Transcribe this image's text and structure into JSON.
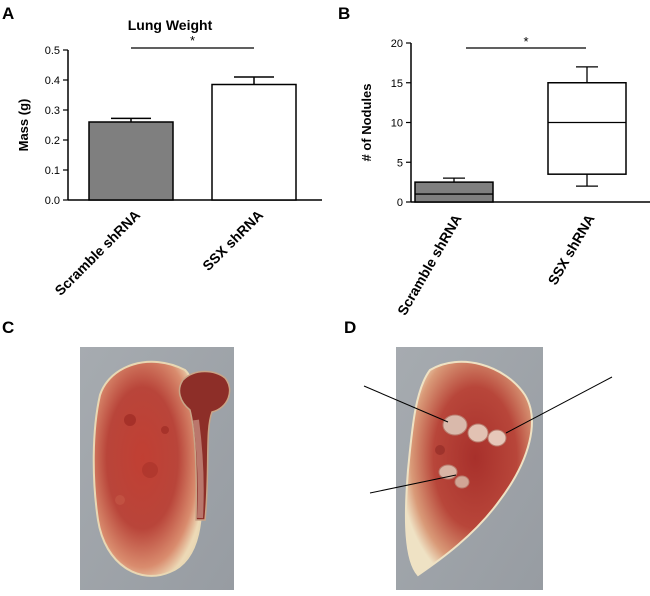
{
  "panels": {
    "a": "A",
    "b": "B",
    "c": "C",
    "d": "D"
  },
  "chart_data": [
    {
      "type": "bar",
      "panel": "A",
      "title": "Lung Weight",
      "xlabel": "",
      "ylabel": "Mass (g)",
      "ylim": [
        0,
        0.5
      ],
      "yticks": [
        "0.0",
        "0.1",
        "0.2",
        "0.3",
        "0.4",
        "0.5"
      ],
      "categories": [
        "Scramble shRNA",
        "SSX shRNA"
      ],
      "values": [
        0.26,
        0.385
      ],
      "errors": [
        0.012,
        0.025
      ],
      "fills": [
        "#7f7f7f",
        "#ffffff"
      ],
      "significance": "*"
    },
    {
      "type": "box",
      "panel": "B",
      "title": "",
      "xlabel": "",
      "ylabel": "# of Nodules",
      "ylim": [
        0,
        20
      ],
      "yticks": [
        "0",
        "5",
        "10",
        "15",
        "20"
      ],
      "categories": [
        "Scramble shRNA",
        "SSX shRNA"
      ],
      "boxes": [
        {
          "min": 0,
          "q1": 0,
          "median": 1,
          "q3": 2.5,
          "max": 3
        },
        {
          "min": 2,
          "q1": 3.5,
          "median": 10,
          "q3": 15,
          "max": 17
        }
      ],
      "fills": [
        "#7f7f7f",
        "#ffffff"
      ],
      "significance": "*"
    }
  ],
  "photos": {
    "c": {
      "name": "lung-photo-scramble",
      "tissue": "#b83a30"
    },
    "d": {
      "name": "lung-photo-ssx",
      "tissue": "#b03530"
    }
  },
  "colors": {
    "axis": "#000000",
    "background": "#ffffff",
    "photo_bg": "#9fa4a8"
  }
}
